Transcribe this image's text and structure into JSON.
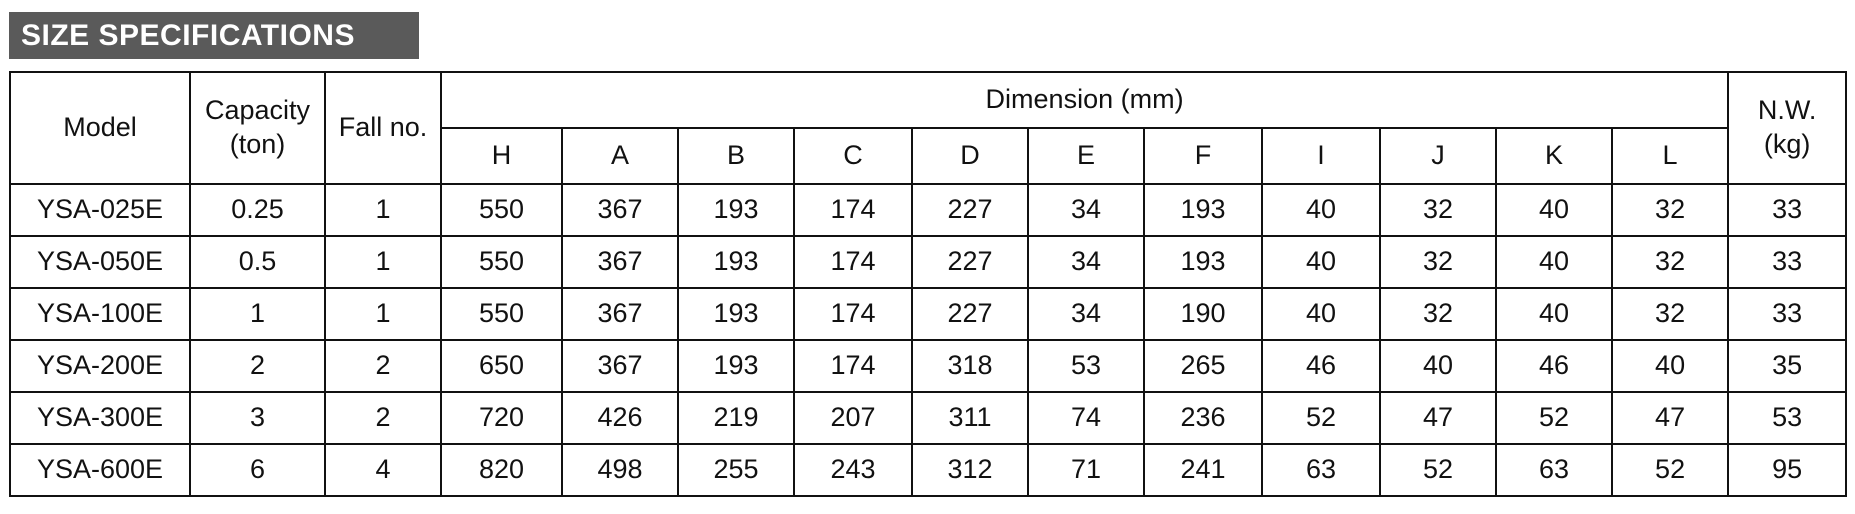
{
  "title": "SIZE SPECIFICATIONS",
  "table": {
    "header": {
      "model": "Model",
      "capacity": "Capacity\n(ton)",
      "fall": "Fall no.",
      "dimension": "Dimension  (mm)",
      "columns": [
        "H",
        "A",
        "B",
        "C",
        "D",
        "E",
        "F",
        "I",
        "J",
        "K",
        "L"
      ],
      "weight": "N.W.\n(kg)"
    },
    "rows": [
      [
        "YSA-025E",
        0.25,
        1,
        550,
        367,
        193,
        174,
        227,
        34,
        193,
        40,
        32,
        40,
        32,
        33
      ],
      [
        "YSA-050E",
        0.5,
        1,
        550,
        367,
        193,
        174,
        227,
        34,
        193,
        40,
        32,
        40,
        32,
        33
      ],
      [
        "YSA-100E",
        1,
        1,
        550,
        367,
        193,
        174,
        227,
        34,
        190,
        40,
        32,
        40,
        32,
        33
      ],
      [
        "YSA-200E",
        2,
        2,
        650,
        367,
        193,
        174,
        318,
        53,
        265,
        46,
        40,
        46,
        40,
        35
      ],
      [
        "YSA-300E",
        3,
        2,
        720,
        426,
        219,
        207,
        311,
        74,
        236,
        52,
        47,
        52,
        47,
        53
      ],
      [
        "YSA-600E",
        6,
        4,
        820,
        498,
        255,
        243,
        312,
        71,
        241,
        63,
        52,
        63,
        52,
        95
      ]
    ]
  }
}
